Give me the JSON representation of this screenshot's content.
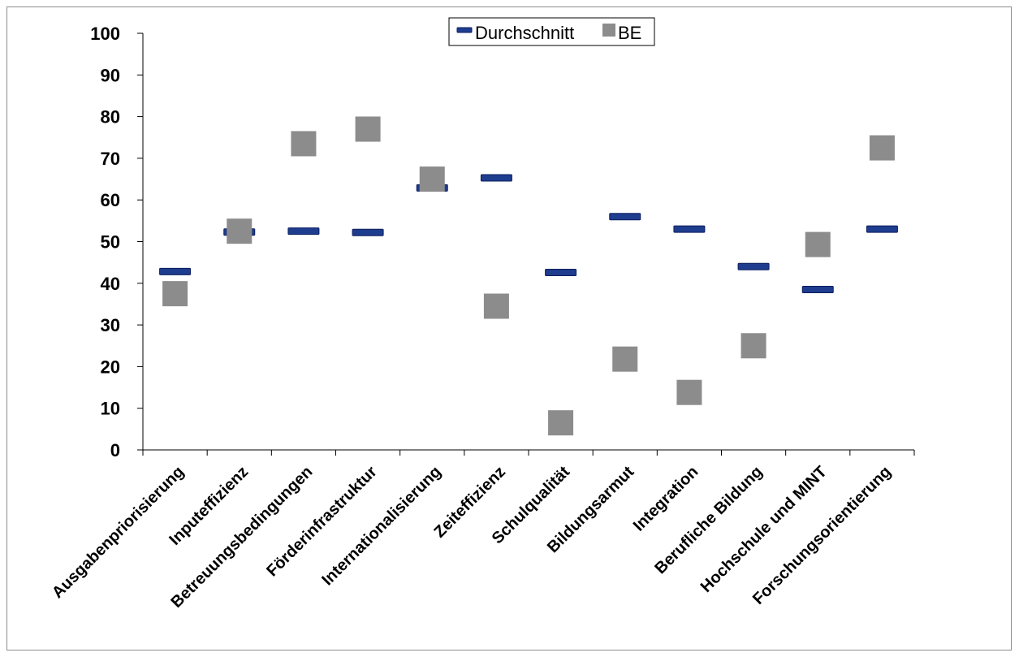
{
  "chart_data": {
    "type": "scatter",
    "categories": [
      "Ausgabenpriorisierung",
      "Inputeffizienz",
      "Betreuungsbedingungen",
      "Förderinfrastruktur",
      "Internationalisierung",
      "Zeiteffizienz",
      "Schulqualität",
      "Bildungsarmut",
      "Integration",
      "Berufliche Bildung",
      "Hochschule und MINT",
      "Forschungsorientierung"
    ],
    "series": [
      {
        "name": "Durchschnitt",
        "marker": "dash",
        "color": "#1f3d8f",
        "values": [
          42.8,
          52.3,
          52.5,
          52.2,
          62.9,
          65.3,
          42.6,
          56.0,
          53.0,
          44.0,
          38.5,
          53.0
        ]
      },
      {
        "name": "BE",
        "marker": "square",
        "color": "#8c8c8c",
        "values": [
          37.5,
          52.5,
          73.5,
          77.0,
          65.0,
          34.5,
          6.5,
          21.8,
          13.8,
          25.0,
          49.3,
          72.5
        ]
      }
    ],
    "yticks": [
      "0",
      "10",
      "20",
      "30",
      "40",
      "50",
      "60",
      "70",
      "80",
      "90",
      "100"
    ],
    "ylim": [
      0,
      100
    ],
    "grid": false,
    "legend": "top-center"
  }
}
